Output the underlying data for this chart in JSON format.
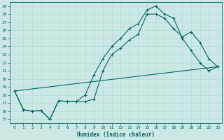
{
  "xlabel": "Humidex (Indice chaleur)",
  "bg_color": "#cce8e4",
  "grid_color": "#aad8d4",
  "line_color": "#006666",
  "xlim": [
    -0.5,
    23.5
  ],
  "ylim": [
    14.5,
    29.5
  ],
  "x_ticks": [
    0,
    1,
    2,
    3,
    4,
    5,
    6,
    7,
    8,
    9,
    10,
    11,
    12,
    13,
    14,
    15,
    16,
    17,
    18,
    19,
    20,
    21,
    22,
    23
  ],
  "y_ticks": [
    15,
    16,
    17,
    18,
    19,
    20,
    21,
    22,
    23,
    24,
    25,
    26,
    27,
    28,
    29
  ],
  "line1_x": [
    0,
    1,
    2,
    3,
    4,
    5,
    6,
    7,
    8,
    9,
    10,
    11,
    12,
    13,
    14,
    15,
    16,
    17,
    18,
    19,
    20,
    21,
    22,
    23
  ],
  "line1_y": [
    18.5,
    16.2,
    16.0,
    16.1,
    15.0,
    17.3,
    17.2,
    17.2,
    17.2,
    17.5,
    21.0,
    23.0,
    23.8,
    24.8,
    25.5,
    28.0,
    28.0,
    27.5,
    26.2,
    25.2,
    25.8,
    24.5,
    22.5,
    21.5
  ],
  "line2_x": [
    0,
    1,
    2,
    3,
    4,
    5,
    6,
    7,
    8,
    9,
    10,
    11,
    12,
    13,
    14,
    15,
    16,
    17,
    18,
    19,
    20,
    21,
    22,
    23
  ],
  "line2_y": [
    18.5,
    16.2,
    16.0,
    16.1,
    15.0,
    17.3,
    17.2,
    17.2,
    18.0,
    20.5,
    22.5,
    24.0,
    25.0,
    26.2,
    26.8,
    28.5,
    29.0,
    28.0,
    27.5,
    25.0,
    23.5,
    22.0,
    21.0,
    21.5
  ],
  "line3_x": [
    0,
    23
  ],
  "line3_y": [
    18.5,
    21.5
  ]
}
